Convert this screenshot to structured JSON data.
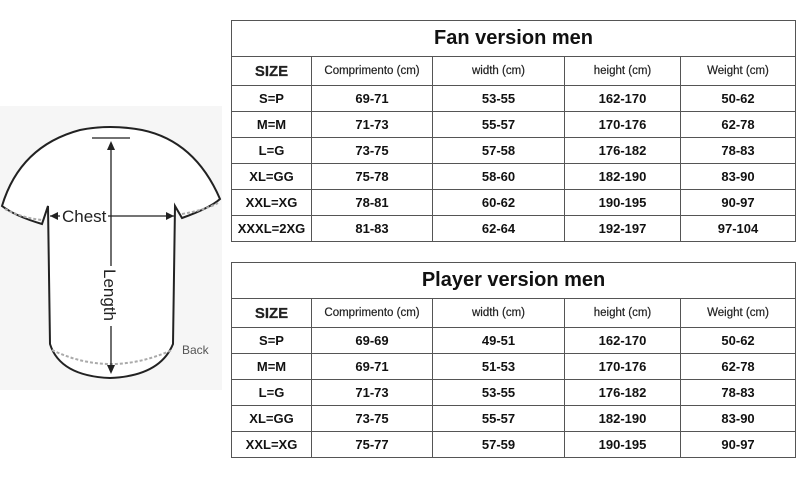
{
  "diagram": {
    "chest_label": "Chest",
    "length_label": "Length",
    "back_label": "Back"
  },
  "tables": [
    {
      "title": "Fan version men",
      "headers": [
        "SIZE",
        "Comprimento (cm)",
        "width (cm)",
        "height (cm)",
        "Weight (cm)"
      ],
      "rows": [
        [
          "S=P",
          "69-71",
          "53-55",
          "162-170",
          "50-62"
        ],
        [
          "M=M",
          "71-73",
          "55-57",
          "170-176",
          "62-78"
        ],
        [
          "L=G",
          "73-75",
          "57-58",
          "176-182",
          "78-83"
        ],
        [
          "XL=GG",
          "75-78",
          "58-60",
          "182-190",
          "83-90"
        ],
        [
          "XXL=XG",
          "78-81",
          "60-62",
          "190-195",
          "90-97"
        ],
        [
          "XXXL=2XG",
          "81-83",
          "62-64",
          "192-197",
          "97-104"
        ]
      ]
    },
    {
      "title": "Player version men",
      "headers": [
        "SIZE",
        "Comprimento (cm)",
        "width (cm)",
        "height (cm)",
        "Weight (cm)"
      ],
      "rows": [
        [
          "S=P",
          "69-69",
          "49-51",
          "162-170",
          "50-62"
        ],
        [
          "M=M",
          "69-71",
          "51-53",
          "170-176",
          "62-78"
        ],
        [
          "L=G",
          "71-73",
          "53-55",
          "176-182",
          "78-83"
        ],
        [
          "XL=GG",
          "73-75",
          "55-57",
          "182-190",
          "83-90"
        ],
        [
          "XXL=XG",
          "75-77",
          "57-59",
          "190-195",
          "90-97"
        ]
      ]
    }
  ]
}
